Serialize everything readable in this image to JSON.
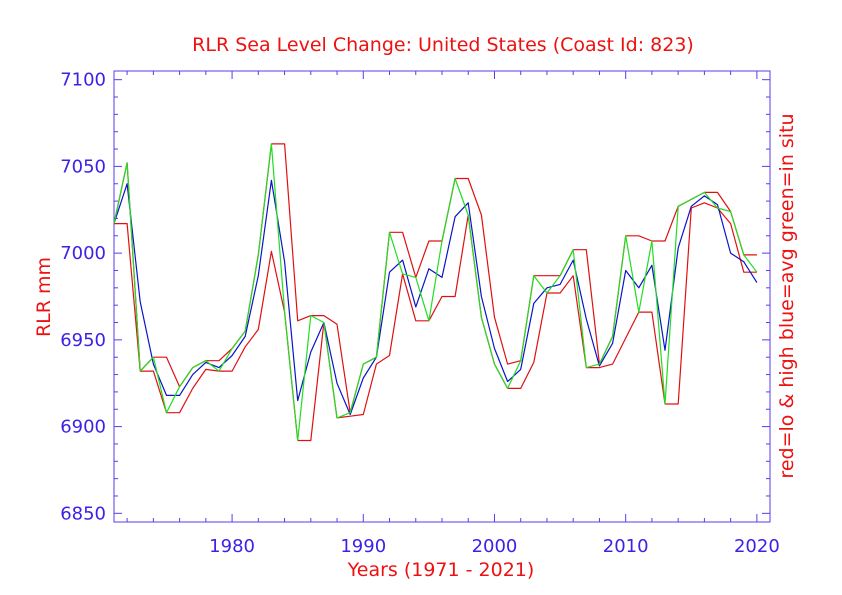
{
  "chart_data": {
    "type": "line",
    "title": "RLR Sea Level Change: United States (Coast Id: 823)",
    "xlabel": "Years (1971 - 2021)",
    "ylabel": "RLR mm",
    "y2label": "red=lo & high  blue=avg  green=in situ",
    "xlim": [
      1971,
      2021
    ],
    "ylim": [
      6845,
      7105
    ],
    "x_ticks": [
      1980,
      1990,
      2000,
      2010,
      2020
    ],
    "y_ticks": [
      6850,
      6900,
      6950,
      7000,
      7050,
      7100
    ],
    "x": [
      1971,
      1972,
      1973,
      1974,
      1975,
      1976,
      1977,
      1978,
      1979,
      1980,
      1981,
      1982,
      1983,
      1984,
      1985,
      1986,
      1987,
      1988,
      1989,
      1990,
      1991,
      1992,
      1993,
      1994,
      1995,
      1996,
      1997,
      1998,
      1999,
      2000,
      2001,
      2002,
      2003,
      2004,
      2005,
      2006,
      2007,
      2008,
      2009,
      2010,
      2011,
      2012,
      2013,
      2014,
      2015,
      2016,
      2017,
      2018,
      2019,
      2020
    ],
    "series": [
      {
        "name": "high",
        "color": "#e01010",
        "values": [
          7017,
          7052,
          6932,
          6940,
          6940,
          6923,
          6934,
          6938,
          6938,
          6945,
          6955,
          6999,
          7063,
          7063,
          6961,
          6964,
          6964,
          6959,
          6908,
          6936,
          6940,
          7012,
          7012,
          6986,
          7007,
          7007,
          7043,
          7043,
          7022,
          6963,
          6936,
          6938,
          6987,
          6987,
          6987,
          7002,
          7002,
          6936,
          6952,
          7010,
          7010,
          7007,
          7007,
          7027,
          7031,
          7035,
          7035,
          7024,
          6999,
          6999
        ]
      },
      {
        "name": "low",
        "color": "#e01010",
        "values": [
          7017,
          7017,
          6932,
          6932,
          6908,
          6908,
          6922,
          6933,
          6932,
          6932,
          6946,
          6956,
          7001,
          6966,
          6892,
          6892,
          6960,
          6905,
          6906,
          6907,
          6936,
          6941,
          6988,
          6961,
          6961,
          6975,
          6975,
          7022,
          6963,
          6936,
          6922,
          6922,
          6937,
          6977,
          6977,
          6987,
          6934,
          6934,
          6936,
          6951,
          6966,
          6966,
          6913,
          6913,
          7026,
          7029,
          7026,
          7017,
          6989,
          6989
        ]
      },
      {
        "name": "avg",
        "color": "#0a14c8",
        "values": [
          7017,
          7040,
          6972,
          6936,
          6918,
          6918,
          6930,
          6937,
          6934,
          6941,
          6952,
          6987,
          7042,
          6995,
          6915,
          6943,
          6960,
          6925,
          6907,
          6928,
          6940,
          6989,
          6996,
          6969,
          6991,
          6986,
          7021,
          7029,
          6975,
          6945,
          6926,
          6933,
          6971,
          6980,
          6982,
          6996,
          6962,
          6935,
          6948,
          6990,
          6980,
          6993,
          6944,
          7003,
          7027,
          7033,
          7028,
          7000,
          6995,
          6983
        ]
      },
      {
        "name": "in situ",
        "color": "#22dd22",
        "values": [
          7017,
          7052,
          6932,
          6940,
          6908,
          6923,
          6934,
          6938,
          6932,
          6945,
          6955,
          6999,
          7063,
          6966,
          6892,
          6964,
          6960,
          6905,
          6908,
          6936,
          6940,
          7012,
          6988,
          6986,
          6961,
          7007,
          7043,
          7022,
          6963,
          6936,
          6922,
          6938,
          6987,
          6977,
          6987,
          7002,
          6934,
          6936,
          6952,
          7010,
          6966,
          7007,
          6913,
          7027,
          7031,
          7035,
          7026,
          7024,
          6999,
          6989
        ]
      }
    ]
  }
}
